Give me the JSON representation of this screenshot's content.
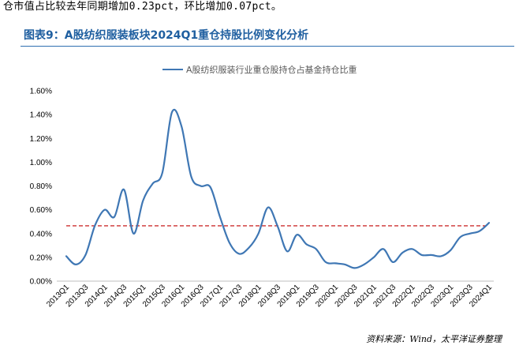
{
  "intro_text": "仓市值占比较去年同期增加0.23pct，环比增加0.07pct。",
  "figure_title": "图表9：A股纺织服装板块2024Q1重仓持股比例变化分析",
  "source": "资料来源：Wind，太平洋证券整理",
  "chart_data": {
    "type": "line",
    "title": "",
    "xlabel": "",
    "ylabel": "",
    "ylim": [
      0,
      1.6
    ],
    "y_ticks": [
      "0.00%",
      "0.20%",
      "0.40%",
      "0.60%",
      "0.80%",
      "1.00%",
      "1.20%",
      "1.40%",
      "1.60%"
    ],
    "x_tick_labels": [
      "2013Q1",
      "2013Q3",
      "2014Q1",
      "2014Q3",
      "2015Q1",
      "2015Q3",
      "2016Q1",
      "2016Q3",
      "2017Q1",
      "2017Q3",
      "2018Q1",
      "2018Q3",
      "2019Q1",
      "2019Q3",
      "2020Q1",
      "2020Q3",
      "2021Q1",
      "2021Q3",
      "2022Q1",
      "2022Q3",
      "2023Q1",
      "2023Q3",
      "2024Q1"
    ],
    "categories": [
      "2013Q1",
      "2013Q2",
      "2013Q3",
      "2013Q4",
      "2014Q1",
      "2014Q2",
      "2014Q3",
      "2014Q4",
      "2015Q1",
      "2015Q2",
      "2015Q3",
      "2015Q4",
      "2016Q1",
      "2016Q2",
      "2016Q3",
      "2016Q4",
      "2017Q1",
      "2017Q2",
      "2017Q3",
      "2017Q4",
      "2018Q1",
      "2018Q2",
      "2018Q3",
      "2018Q4",
      "2019Q1",
      "2019Q2",
      "2019Q3",
      "2019Q4",
      "2020Q1",
      "2020Q2",
      "2020Q3",
      "2020Q4",
      "2021Q1",
      "2021Q2",
      "2021Q3",
      "2021Q4",
      "2022Q1",
      "2022Q2",
      "2022Q3",
      "2022Q4",
      "2023Q1",
      "2023Q2",
      "2023Q3",
      "2023Q4",
      "2024Q1"
    ],
    "series": [
      {
        "name": "A股纺织服装行业重仓股持仓占基金持仓比重",
        "color": "#3f77b4",
        "values": [
          0.21,
          0.14,
          0.22,
          0.47,
          0.6,
          0.54,
          0.77,
          0.4,
          0.68,
          0.82,
          0.91,
          1.42,
          1.3,
          0.88,
          0.8,
          0.79,
          0.54,
          0.32,
          0.23,
          0.28,
          0.4,
          0.62,
          0.46,
          0.25,
          0.39,
          0.31,
          0.27,
          0.16,
          0.15,
          0.14,
          0.11,
          0.14,
          0.2,
          0.27,
          0.16,
          0.24,
          0.27,
          0.22,
          0.22,
          0.21,
          0.26,
          0.37,
          0.4,
          0.42,
          0.49
        ]
      }
    ],
    "reference_line": {
      "value": 0.465,
      "color": "#c00000",
      "style": "dashed"
    },
    "grid": false,
    "legend_position": "top-center"
  }
}
